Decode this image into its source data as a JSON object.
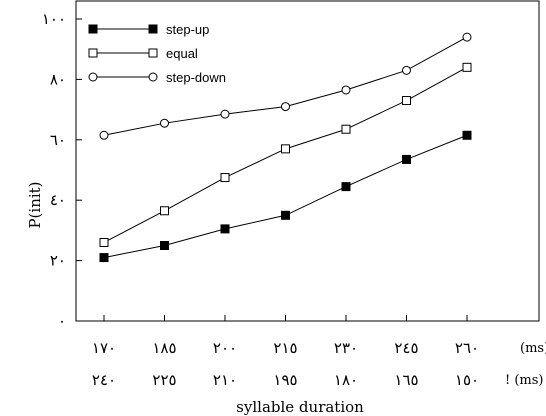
{
  "chart_data": {
    "type": "line",
    "title": "",
    "ylabel": "P(init)",
    "xlabel": "syllable duration",
    "ylim": [
      0,
      100
    ],
    "yticks": [
      0,
      20,
      40,
      60,
      80,
      100
    ],
    "ytick_labels": [
      "٠",
      "٢٠",
      "٤٠",
      "٦٠",
      "٨٠",
      "١٠٠"
    ],
    "categories": [
      "١٧٠",
      "١٨٥",
      "٢٠٠",
      "٢١٥",
      "٢٣٠",
      "٢٤٥",
      "٢٦٠"
    ],
    "categories_row2": [
      "٢٤٠",
      "٢٢٥",
      "٢١٠",
      "١٩٥",
      "١٨٠",
      "١٦٥",
      "١٥٠"
    ],
    "unit_row1": "(ms)",
    "unit_row2": "! (ms)",
    "legend_position": "top-left",
    "series": [
      {
        "name": "step-up",
        "marker": "filled-square",
        "values": [
          21,
          25,
          30.5,
          35,
          44.5,
          53.5,
          61.5
        ]
      },
      {
        "name": "equal",
        "marker": "open-square",
        "values": [
          26,
          36.5,
          47.5,
          57,
          63.5,
          73,
          84
        ]
      },
      {
        "name": "step-down",
        "marker": "open-circle",
        "values": [
          61.5,
          65.5,
          68.5,
          71,
          76.5,
          83,
          94
        ]
      }
    ]
  }
}
